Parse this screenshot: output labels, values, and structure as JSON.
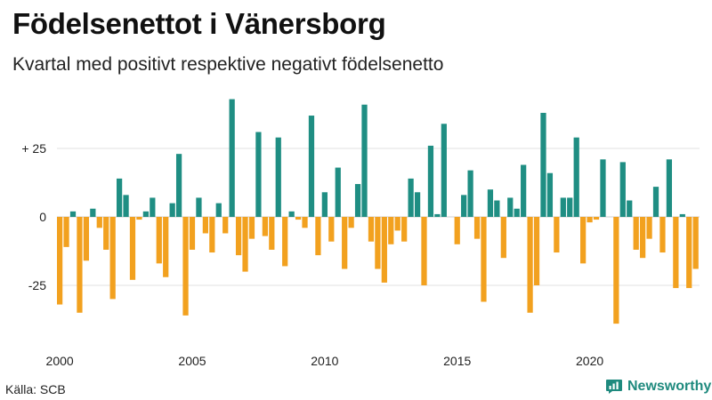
{
  "chart_data": {
    "type": "bar",
    "title": "Födelsenettot i Vänersborg",
    "subtitle": "Kvartal med positivt respektive negativt födelsenetto",
    "x_tick_labels": [
      "2000",
      "2005",
      "2010",
      "2015",
      "2020"
    ],
    "y_tick_labels": [
      "+ 25",
      "0",
      "-25"
    ],
    "y_ticks": [
      25,
      0,
      -25
    ],
    "ylim": [
      -40,
      44
    ],
    "grid": true,
    "positive_color": "#1f8e83",
    "negative_color": "#f2a11f",
    "period": {
      "start_year": 2000,
      "quarters_per_year": 4
    },
    "values": [
      -32,
      -11,
      2,
      -35,
      -16,
      3,
      -4,
      -12,
      -30,
      14,
      8,
      -23,
      -1,
      2,
      7,
      -17,
      -22,
      5,
      23,
      -36,
      -12,
      7,
      -6,
      -13,
      5,
      -6,
      43,
      -14,
      -20,
      -8,
      31,
      -7,
      -12,
      29,
      -18,
      2,
      -1,
      -4,
      37,
      -14,
      9,
      -9,
      18,
      -19,
      -4,
      12,
      41,
      -9,
      -19,
      -24,
      -10,
      -5,
      -9,
      14,
      9,
      -25,
      26,
      1,
      34,
      0,
      -10,
      8,
      17,
      -8,
      -31,
      10,
      6,
      -15,
      7,
      3,
      19,
      -35,
      -25,
      38,
      16,
      -13,
      7,
      7,
      29,
      -17,
      -2,
      -1,
      21,
      0,
      -39,
      20,
      6,
      -12,
      -15,
      -8,
      11,
      -13,
      21,
      -26,
      1,
      -26,
      -19
    ]
  },
  "footer": {
    "source": "Källa: SCB",
    "brand": "Newsworthy",
    "brand_icon": "newsworthy-logo-icon",
    "brand_color": "#1f8a7e"
  }
}
